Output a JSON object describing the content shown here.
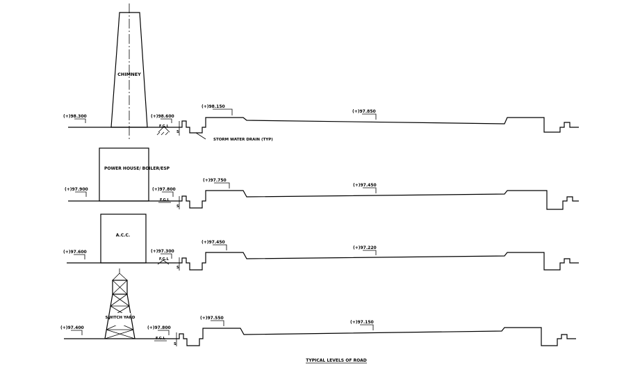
{
  "title": "TYPICAL LEVELS OF ROAD",
  "sections": [
    {
      "structure_label": "CHIMNEY",
      "structure_type": "chimney",
      "levels": [
        "(+)98.300",
        "(+)98.600",
        "(+)98.150",
        "(+)97.850"
      ],
      "fgl_label": "F.G.L",
      "dim_label": "S",
      "note_label": "STORM WATER DRAIN (TYP)"
    },
    {
      "structure_label": "POWER HOUSE/ BOILER/ESP",
      "structure_type": "building",
      "levels": [
        "(+)97.900",
        "(+)97.800",
        "(+)97.750",
        "(+)97.450"
      ],
      "fgl_label": "F.G.L",
      "dim_label": "S"
    },
    {
      "structure_label": "A.C.C.",
      "structure_type": "building",
      "levels": [
        "(+)97.600",
        "(+)97.300",
        "(+)97.450",
        "(+)97.220"
      ],
      "fgl_label": "F.G.L",
      "dim_label": "S"
    },
    {
      "structure_label": "SWITCH YARD",
      "structure_type": "tower",
      "levels": [
        "(+)97.400",
        "(+)97.800",
        "(+)97.550",
        "(+)97.150"
      ],
      "fgl_label": "F.G.L",
      "dim_label": "S"
    }
  ]
}
